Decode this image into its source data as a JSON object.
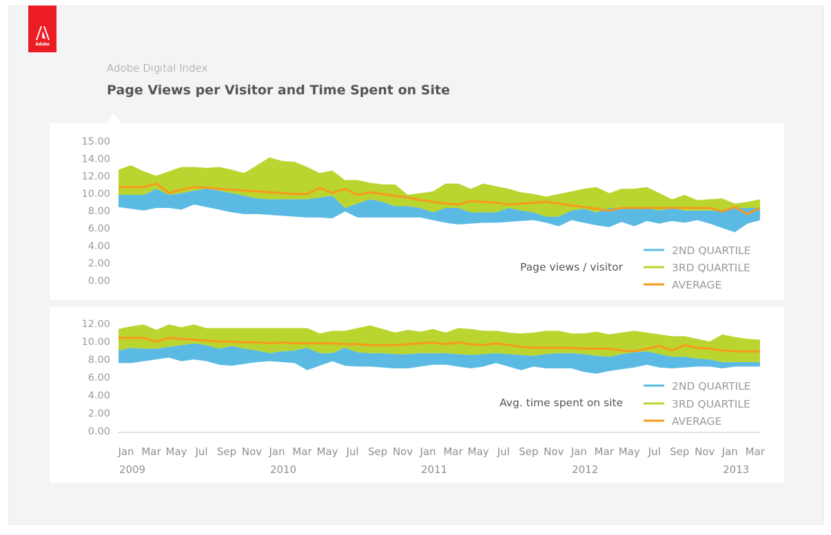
{
  "header": {
    "logo_text": "Adobe",
    "subtitle": "Adobe Digital Index",
    "title": "Page Views per Visitor and Time Spent on Site"
  },
  "colors": {
    "q2": "#5bbae4",
    "q3": "#bad52f",
    "avg": "#f79a1d",
    "logo": "#ec1c24",
    "background": "#f3f4f6"
  },
  "chart_data": [
    {
      "type": "area",
      "title": "Page views / visitor",
      "xlabel": "",
      "ylabel": "",
      "y_tick_labels": [
        "15.00",
        "14.00",
        "12.00",
        "10.00",
        "8.00",
        "6.00",
        "4.00",
        "2.00",
        "0.00"
      ],
      "ylim": [
        0,
        16
      ],
      "grid": false,
      "legend": {
        "placement": "bottom-right",
        "entries": [
          "2ND QUARTILE",
          "3RD QUARTILE",
          "AVERAGE"
        ]
      },
      "series": [
        {
          "name": "2ND QUARTILE",
          "kind": "band",
          "low": [
            8.4,
            8.2,
            8.0,
            8.3,
            8.3,
            8.1,
            8.7,
            8.4,
            8.1,
            7.8,
            7.6,
            7.6,
            7.5,
            7.4,
            7.3,
            7.2,
            7.2,
            7.1,
            7.9,
            7.2,
            7.2,
            7.2,
            7.2,
            7.2,
            7.2,
            6.9,
            6.6,
            6.4,
            6.5,
            6.6,
            6.6,
            6.7,
            6.8,
            6.9,
            6.6,
            6.2,
            6.9,
            6.6,
            6.3,
            6.1,
            6.7,
            6.2,
            6.8,
            6.5,
            6.8,
            6.6,
            6.9,
            6.5,
            6.0,
            5.5,
            6.5,
            6.9
          ],
          "high": [
            9.8,
            9.8,
            9.8,
            10.5,
            9.8,
            10.0,
            10.3,
            10.5,
            10.3,
            10.0,
            9.7,
            9.4,
            9.3,
            9.3,
            9.3,
            9.3,
            9.5,
            9.7,
            8.3,
            8.8,
            9.3,
            9.0,
            8.5,
            8.5,
            8.3,
            7.8,
            8.3,
            8.3,
            7.8,
            7.8,
            7.8,
            8.3,
            8.0,
            7.8,
            7.3,
            7.3,
            8.0,
            8.2,
            7.8,
            8.3,
            8.3,
            8.3,
            8.3,
            8.0,
            8.3,
            8.0,
            8.0,
            8.0,
            8.0,
            8.3,
            8.3,
            8.3
          ]
        },
        {
          "name": "3RD QUARTILE",
          "kind": "band",
          "low": [
            9.8,
            9.8,
            9.8,
            10.5,
            9.8,
            10.0,
            10.3,
            10.5,
            10.3,
            10.0,
            9.7,
            9.4,
            9.3,
            9.3,
            9.3,
            9.3,
            9.5,
            9.7,
            8.3,
            8.8,
            9.3,
            9.0,
            8.5,
            8.5,
            8.3,
            7.8,
            8.3,
            8.3,
            7.8,
            7.8,
            7.8,
            8.3,
            8.0,
            7.8,
            7.3,
            7.3,
            8.0,
            8.2,
            7.8,
            8.3,
            8.3,
            8.3,
            8.3,
            8.0,
            8.3,
            8.0,
            8.0,
            8.0,
            8.0,
            8.3,
            8.3,
            8.3
          ],
          "high": [
            12.7,
            13.2,
            12.5,
            12.0,
            12.5,
            13.0,
            13.0,
            12.9,
            13.0,
            12.7,
            12.3,
            13.2,
            14.1,
            13.7,
            13.6,
            13.0,
            12.3,
            12.6,
            11.5,
            11.5,
            11.2,
            11.0,
            11.0,
            9.8,
            10.0,
            10.2,
            11.1,
            11.1,
            10.5,
            11.1,
            10.8,
            10.5,
            10.1,
            9.9,
            9.6,
            9.9,
            10.2,
            10.5,
            10.7,
            10.0,
            10.5,
            10.5,
            10.7,
            10.0,
            9.3,
            9.8,
            9.2,
            9.3,
            9.4,
            8.8,
            9.0,
            9.3
          ]
        },
        {
          "name": "AVERAGE",
          "kind": "line",
          "values": [
            10.7,
            10.7,
            10.7,
            11.1,
            10.0,
            10.4,
            10.7,
            10.6,
            10.5,
            10.4,
            10.3,
            10.2,
            10.1,
            10.0,
            9.9,
            9.9,
            10.6,
            10.0,
            10.5,
            9.8,
            10.1,
            9.9,
            9.7,
            9.5,
            9.2,
            9.0,
            8.8,
            8.7,
            9.1,
            9.0,
            8.9,
            8.7,
            8.8,
            8.9,
            9.0,
            8.8,
            8.6,
            8.4,
            8.2,
            8.0,
            8.3,
            8.3,
            8.3,
            8.3,
            8.3,
            8.3,
            8.3,
            8.3,
            7.9,
            8.4,
            7.6,
            8.3
          ]
        }
      ]
    },
    {
      "type": "area",
      "title": "Avg. time spent on site",
      "xlabel": "",
      "ylabel": "",
      "y_tick_labels": [
        "12.00",
        "10.00",
        "8.00",
        "6.00",
        "4.00",
        "2.00",
        "0.00"
      ],
      "ylim": [
        0,
        12
      ],
      "grid": false,
      "legend": {
        "placement": "bottom-right",
        "entries": [
          "2ND QUARTILE",
          "3RD QUARTILE",
          "AVERAGE"
        ]
      },
      "series": [
        {
          "name": "2ND QUARTILE",
          "kind": "band",
          "low": [
            7.6,
            7.6,
            7.8,
            8.0,
            8.2,
            7.8,
            8.0,
            7.8,
            7.4,
            7.3,
            7.5,
            7.7,
            7.8,
            7.7,
            7.6,
            6.8,
            7.3,
            7.8,
            7.3,
            7.2,
            7.2,
            7.1,
            7.0,
            7.0,
            7.2,
            7.4,
            7.4,
            7.2,
            7.0,
            7.2,
            7.6,
            7.2,
            6.8,
            7.2,
            7.0,
            7.0,
            7.0,
            6.6,
            6.4,
            6.7,
            6.9,
            7.1,
            7.4,
            7.1,
            7.0,
            7.1,
            7.2,
            7.2,
            7.0,
            7.2,
            7.2,
            7.2
          ],
          "high": [
            9.0,
            9.3,
            9.2,
            9.2,
            9.4,
            9.6,
            9.8,
            9.6,
            9.2,
            9.5,
            9.2,
            9.0,
            8.7,
            8.9,
            9.0,
            9.3,
            8.7,
            8.7,
            9.3,
            8.8,
            8.7,
            8.7,
            8.6,
            8.6,
            8.7,
            8.7,
            8.7,
            8.6,
            8.5,
            8.6,
            8.7,
            8.6,
            8.5,
            8.4,
            8.6,
            8.7,
            8.7,
            8.6,
            8.4,
            8.3,
            8.6,
            8.8,
            8.9,
            8.6,
            8.3,
            8.3,
            8.1,
            8.0,
            7.7,
            7.7,
            7.7,
            7.7
          ]
        },
        {
          "name": "3RD QUARTILE",
          "kind": "band",
          "low": [
            9.0,
            9.3,
            9.2,
            9.2,
            9.4,
            9.6,
            9.8,
            9.6,
            9.2,
            9.5,
            9.2,
            9.0,
            8.7,
            8.9,
            9.0,
            9.3,
            8.7,
            8.7,
            9.3,
            8.8,
            8.7,
            8.7,
            8.6,
            8.6,
            8.7,
            8.7,
            8.7,
            8.6,
            8.5,
            8.6,
            8.7,
            8.6,
            8.5,
            8.4,
            8.6,
            8.7,
            8.7,
            8.6,
            8.4,
            8.3,
            8.6,
            8.8,
            8.9,
            8.6,
            8.3,
            8.3,
            8.1,
            8.0,
            7.7,
            7.7,
            7.7,
            7.7
          ],
          "high": [
            11.4,
            11.7,
            11.9,
            11.3,
            11.9,
            11.6,
            11.9,
            11.5,
            11.5,
            11.5,
            11.5,
            11.5,
            11.5,
            11.5,
            11.5,
            11.5,
            10.9,
            11.2,
            11.2,
            11.5,
            11.8,
            11.4,
            11.0,
            11.3,
            11.1,
            11.4,
            11.0,
            11.5,
            11.4,
            11.2,
            11.2,
            11.0,
            10.9,
            11.0,
            11.2,
            11.2,
            10.9,
            10.9,
            11.1,
            10.8,
            11.0,
            11.2,
            11.0,
            10.8,
            10.6,
            10.6,
            10.3,
            10.0,
            10.8,
            10.5,
            10.3,
            10.2
          ]
        },
        {
          "name": "AVERAGE",
          "kind": "line",
          "values": [
            10.4,
            10.4,
            10.4,
            10.0,
            10.4,
            10.3,
            10.2,
            10.1,
            10.0,
            10.0,
            9.9,
            9.9,
            9.8,
            9.9,
            9.8,
            9.8,
            9.8,
            9.8,
            9.7,
            9.7,
            9.6,
            9.6,
            9.6,
            9.7,
            9.8,
            9.9,
            9.7,
            9.9,
            9.7,
            9.6,
            9.8,
            9.6,
            9.4,
            9.3,
            9.3,
            9.3,
            9.3,
            9.2,
            9.2,
            9.2,
            9.0,
            8.9,
            9.2,
            9.5,
            9.0,
            9.6,
            9.3,
            9.2,
            9.0,
            8.9,
            8.9,
            8.9
          ]
        }
      ]
    }
  ],
  "x_axis": {
    "months": [
      "Jan",
      "Mar",
      "May",
      "Jul",
      "Sep",
      "Nov",
      "Jan",
      "Mar",
      "May",
      "Jul",
      "Sep",
      "Nov",
      "Jan",
      "Mar",
      "May",
      "Jul",
      "Sep",
      "Nov",
      "Jan",
      "Mar",
      "May",
      "Jul",
      "Sep",
      "Nov",
      "Jan",
      "Mar"
    ],
    "month_index": [
      0,
      2,
      4,
      6,
      8,
      10,
      12,
      14,
      16,
      18,
      20,
      22,
      24,
      26,
      28,
      30,
      32,
      34,
      36,
      38,
      40,
      42,
      44,
      46,
      48,
      50
    ],
    "years": [
      "2009",
      "2010",
      "2011",
      "2012",
      "2013"
    ],
    "year_index": [
      0,
      12,
      24,
      36,
      48
    ],
    "point_count": 52
  }
}
